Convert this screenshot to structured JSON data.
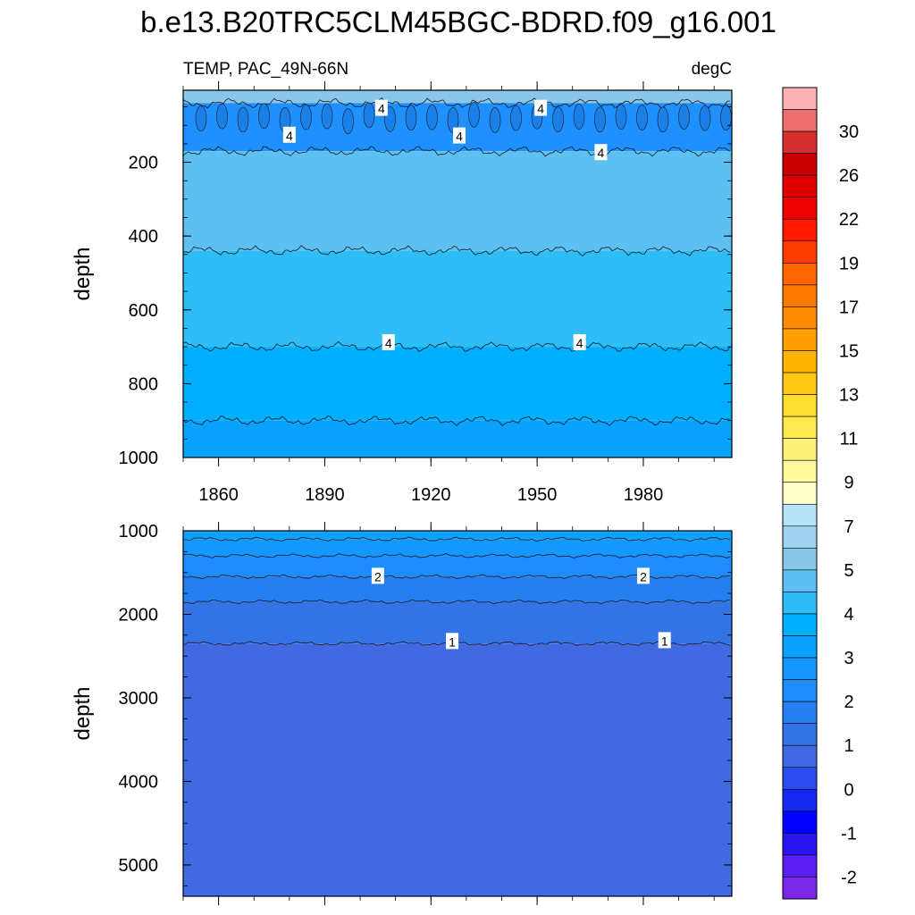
{
  "title": "b.e13.B20TRC5CLM45BGC-BDRD.f09_g16.001",
  "chart_data": [
    {
      "type": "heatmap",
      "name": "upper-ocean",
      "subtitle_left": "TEMP, PAC_49N-66N",
      "subtitle_right": "degC",
      "xlabel": "",
      "ylabel": "depth",
      "xlim": [
        1850,
        2005
      ],
      "ylim": [
        1000,
        5
      ],
      "y_reversed": true,
      "xticks": [
        1860,
        1890,
        1920,
        1950,
        1980
      ],
      "yticks": [
        200,
        400,
        600,
        800,
        1000
      ],
      "bands": [
        {
          "top": 5,
          "bottom": 40,
          "value": 5.5,
          "color": "#89c6ea"
        },
        {
          "top": 40,
          "bottom": 170,
          "value": 3.5,
          "color": "#1e90ff"
        },
        {
          "top": 170,
          "bottom": 440,
          "value": 4.75,
          "color": "#5dc0f3"
        },
        {
          "top": 440,
          "bottom": 700,
          "value": 4.25,
          "color": "#2fbdf8"
        },
        {
          "top": 700,
          "bottom": 900,
          "value": 3.75,
          "color": "#00b0ff"
        },
        {
          "top": 900,
          "bottom": 1000,
          "value": 3.25,
          "color": "#09a2ff"
        }
      ],
      "contour_labels": [
        {
          "x": 1906,
          "y": 55,
          "text": "4"
        },
        {
          "x": 1880,
          "y": 128,
          "text": "4"
        },
        {
          "x": 1951,
          "y": 55,
          "text": "4"
        },
        {
          "x": 1928,
          "y": 130,
          "text": "4"
        },
        {
          "x": 1968,
          "y": 175,
          "text": "4"
        },
        {
          "x": 1908,
          "y": 690,
          "text": "4"
        },
        {
          "x": 1962,
          "y": 690,
          "text": "4"
        }
      ]
    },
    {
      "type": "heatmap",
      "name": "deep-ocean",
      "xlabel": "",
      "ylabel": "depth",
      "xlim": [
        1850,
        2005
      ],
      "ylim": [
        5375,
        1000
      ],
      "y_reversed": true,
      "yticks": [
        1000,
        2000,
        3000,
        4000,
        5000
      ],
      "bands": [
        {
          "top": 1000,
          "bottom": 1100,
          "value": 3.25,
          "color": "#09a2ff"
        },
        {
          "top": 1100,
          "bottom": 1300,
          "value": 2.75,
          "color": "#1498ff"
        },
        {
          "top": 1300,
          "bottom": 1550,
          "value": 2.25,
          "color": "#1e8bff"
        },
        {
          "top": 1550,
          "bottom": 1850,
          "value": 1.75,
          "color": "#267ff0"
        },
        {
          "top": 1850,
          "bottom": 2350,
          "value": 1.25,
          "color": "#3373e6"
        },
        {
          "top": 2350,
          "bottom": 5375,
          "value": 0.75,
          "color": "#416ae2"
        }
      ],
      "contour_labels": [
        {
          "x": 1905,
          "y": 1550,
          "text": "2"
        },
        {
          "x": 1980,
          "y": 1550,
          "text": "2"
        },
        {
          "x": 1926,
          "y": 2330,
          "text": "1"
        },
        {
          "x": 1986,
          "y": 2320,
          "text": "1"
        }
      ]
    }
  ],
  "colorbar": {
    "labels": [
      "30",
      "26",
      "22",
      "19",
      "17",
      "15",
      "13",
      "11",
      "9",
      "7",
      "5",
      "4",
      "3",
      "2",
      "1",
      "0",
      "-1",
      "-2"
    ],
    "colors": [
      "#feb4b4",
      "#ec6e6e",
      "#d72f2f",
      "#c80000",
      "#e00000",
      "#ee0000",
      "#ff1a00",
      "#ff3d00",
      "#ff6400",
      "#ff7800",
      "#ff8c00",
      "#ffa000",
      "#ffb400",
      "#ffc814",
      "#ffde32",
      "#ffea50",
      "#fff27a",
      "#fffa9e",
      "#ffffcc",
      "#b8e2f6",
      "#a1d4f0",
      "#89c6ea",
      "#5dc0f3",
      "#2fbdf8",
      "#00b0ff",
      "#09a2ff",
      "#1498ff",
      "#1e8bff",
      "#267ff0",
      "#3373e6",
      "#416ae2",
      "#2b4cf0",
      "#1428f0",
      "#0000ff",
      "#2a14f0",
      "#5a1ef0",
      "#7b28e6"
    ]
  }
}
